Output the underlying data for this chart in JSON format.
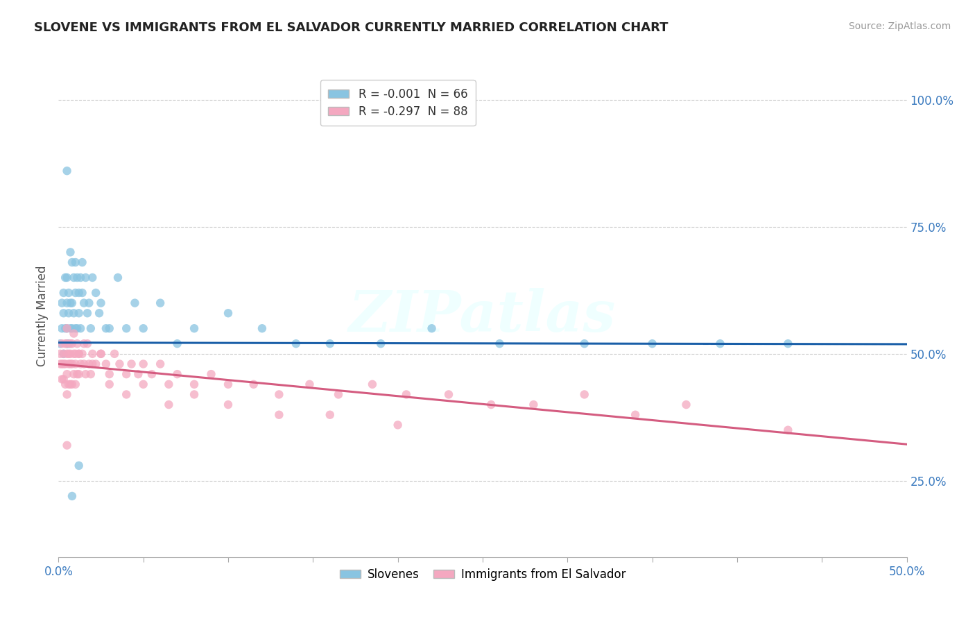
{
  "title": "SLOVENE VS IMMIGRANTS FROM EL SALVADOR CURRENTLY MARRIED CORRELATION CHART",
  "source": "Source: ZipAtlas.com",
  "ylabel": "Currently Married",
  "xmin": 0.0,
  "xmax": 0.5,
  "ymin": 0.1,
  "ymax": 1.05,
  "yticks": [
    0.25,
    0.5,
    0.75,
    1.0
  ],
  "ytick_labels": [
    "25.0%",
    "50.0%",
    "75.0%",
    "100.0%"
  ],
  "legend_r1": "R = -0.001  N = 66",
  "legend_r2": "R = -0.297  N = 88",
  "color_blue": "#89c4e1",
  "color_pink": "#f4a8c0",
  "line_color_blue": "#1a5fa8",
  "line_color_pink": "#d45c80",
  "watermark": "ZIPatlas",
  "blue_x": [
    0.001,
    0.002,
    0.002,
    0.003,
    0.003,
    0.003,
    0.004,
    0.004,
    0.005,
    0.005,
    0.005,
    0.005,
    0.006,
    0.006,
    0.006,
    0.007,
    0.007,
    0.007,
    0.008,
    0.008,
    0.008,
    0.009,
    0.009,
    0.01,
    0.01,
    0.01,
    0.011,
    0.011,
    0.012,
    0.012,
    0.013,
    0.013,
    0.014,
    0.014,
    0.015,
    0.016,
    0.017,
    0.018,
    0.019,
    0.02,
    0.022,
    0.024,
    0.025,
    0.028,
    0.03,
    0.035,
    0.04,
    0.045,
    0.05,
    0.06,
    0.07,
    0.08,
    0.1,
    0.12,
    0.14,
    0.16,
    0.19,
    0.22,
    0.26,
    0.31,
    0.35,
    0.39,
    0.43,
    0.005,
    0.008,
    0.012
  ],
  "blue_y": [
    0.52,
    0.55,
    0.6,
    0.58,
    0.62,
    0.5,
    0.65,
    0.55,
    0.6,
    0.55,
    0.52,
    0.65,
    0.58,
    0.62,
    0.52,
    0.7,
    0.55,
    0.6,
    0.68,
    0.55,
    0.6,
    0.58,
    0.65,
    0.55,
    0.62,
    0.68,
    0.65,
    0.55,
    0.62,
    0.58,
    0.65,
    0.55,
    0.62,
    0.68,
    0.6,
    0.65,
    0.58,
    0.6,
    0.55,
    0.65,
    0.62,
    0.58,
    0.6,
    0.55,
    0.55,
    0.65,
    0.55,
    0.6,
    0.55,
    0.6,
    0.52,
    0.55,
    0.58,
    0.55,
    0.52,
    0.52,
    0.52,
    0.55,
    0.52,
    0.52,
    0.52,
    0.52,
    0.52,
    0.86,
    0.22,
    0.28
  ],
  "pink_x": [
    0.001,
    0.001,
    0.002,
    0.002,
    0.002,
    0.003,
    0.003,
    0.003,
    0.004,
    0.004,
    0.004,
    0.005,
    0.005,
    0.005,
    0.005,
    0.006,
    0.006,
    0.006,
    0.007,
    0.007,
    0.007,
    0.008,
    0.008,
    0.008,
    0.009,
    0.009,
    0.01,
    0.01,
    0.01,
    0.011,
    0.011,
    0.012,
    0.012,
    0.013,
    0.014,
    0.015,
    0.016,
    0.017,
    0.018,
    0.019,
    0.02,
    0.022,
    0.025,
    0.028,
    0.03,
    0.033,
    0.036,
    0.04,
    0.043,
    0.047,
    0.05,
    0.055,
    0.06,
    0.065,
    0.07,
    0.08,
    0.09,
    0.1,
    0.115,
    0.13,
    0.148,
    0.165,
    0.185,
    0.205,
    0.23,
    0.255,
    0.28,
    0.31,
    0.34,
    0.37,
    0.005,
    0.007,
    0.009,
    0.012,
    0.015,
    0.02,
    0.025,
    0.03,
    0.04,
    0.05,
    0.065,
    0.08,
    0.1,
    0.13,
    0.16,
    0.2,
    0.43,
    0.005
  ],
  "pink_y": [
    0.5,
    0.48,
    0.52,
    0.48,
    0.45,
    0.5,
    0.48,
    0.45,
    0.52,
    0.48,
    0.44,
    0.52,
    0.5,
    0.46,
    0.42,
    0.5,
    0.48,
    0.44,
    0.5,
    0.48,
    0.44,
    0.52,
    0.48,
    0.44,
    0.5,
    0.46,
    0.5,
    0.48,
    0.44,
    0.52,
    0.46,
    0.5,
    0.46,
    0.48,
    0.5,
    0.48,
    0.46,
    0.52,
    0.48,
    0.46,
    0.5,
    0.48,
    0.5,
    0.48,
    0.46,
    0.5,
    0.48,
    0.46,
    0.48,
    0.46,
    0.48,
    0.46,
    0.48,
    0.44,
    0.46,
    0.44,
    0.46,
    0.44,
    0.44,
    0.42,
    0.44,
    0.42,
    0.44,
    0.42,
    0.42,
    0.4,
    0.4,
    0.42,
    0.38,
    0.4,
    0.55,
    0.52,
    0.54,
    0.5,
    0.52,
    0.48,
    0.5,
    0.44,
    0.42,
    0.44,
    0.4,
    0.42,
    0.4,
    0.38,
    0.38,
    0.36,
    0.35,
    0.32
  ]
}
